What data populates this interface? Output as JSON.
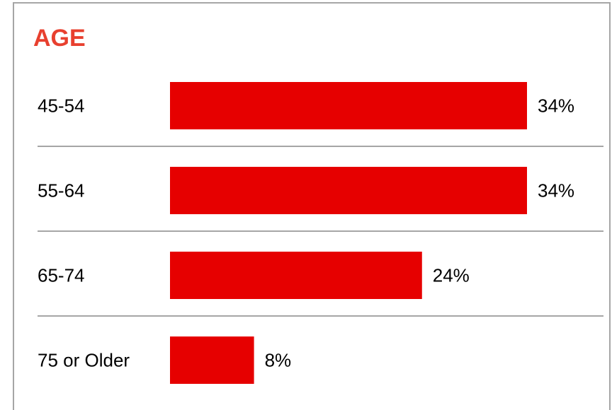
{
  "chart_data": {
    "type": "bar",
    "orientation": "horizontal",
    "title": "AGE",
    "categories": [
      "45-54",
      "55-64",
      "65-74",
      "75 or Older"
    ],
    "values": [
      34,
      34,
      24,
      8
    ],
    "value_labels": [
      "34%",
      "34%",
      "24%",
      "8%"
    ],
    "unit": "%",
    "xlim": [
      0,
      34
    ],
    "grid": false,
    "legend": "none",
    "colors": {
      "bar": "#e60000",
      "title": "#e8402f",
      "separator": "#a6a6a6",
      "frame": "#a6a6a6",
      "text": "#000000"
    }
  }
}
